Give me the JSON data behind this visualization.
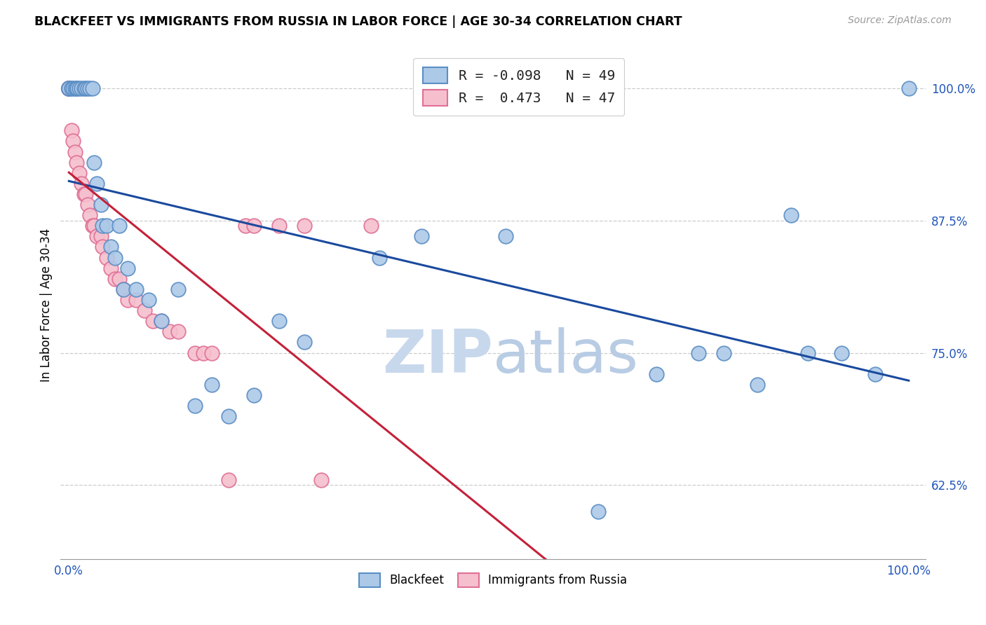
{
  "title": "BLACKFEET VS IMMIGRANTS FROM RUSSIA IN LABOR FORCE | AGE 30-34 CORRELATION CHART",
  "source": "Source: ZipAtlas.com",
  "ylabel": "In Labor Force | Age 30-34",
  "y_tick_labels_right": [
    "100.0%",
    "87.5%",
    "75.0%",
    "62.5%"
  ],
  "y_tick_positions": [
    1.0,
    0.875,
    0.75,
    0.625
  ],
  "blackfeet_color": "#adc9e8",
  "russia_color": "#f5bfce",
  "blackfeet_edge": "#5b8ec4",
  "russia_edge": "#e07095",
  "trendline_blue": "#1a4a9e",
  "trendline_red": "#c4213a",
  "watermark_color": "#c8d8ec",
  "R_blackfeet": -0.098,
  "N_blackfeet": 49,
  "R_russia": 0.473,
  "N_russia": 47,
  "blackfeet_x": [
    0.0,
    0.0,
    0.0,
    0.0,
    0.003,
    0.005,
    0.007,
    0.009,
    0.01,
    0.012,
    0.015,
    0.018,
    0.02,
    0.022,
    0.025,
    0.028,
    0.03,
    0.033,
    0.038,
    0.04,
    0.045,
    0.05,
    0.055,
    0.06,
    0.065,
    0.07,
    0.08,
    0.095,
    0.11,
    0.13,
    0.15,
    0.17,
    0.19,
    0.22,
    0.25,
    0.28,
    0.37,
    0.42,
    0.52,
    0.63,
    0.7,
    0.75,
    0.78,
    0.82,
    0.86,
    0.88,
    0.92,
    0.96,
    1.0
  ],
  "blackfeet_y": [
    1.0,
    1.0,
    1.0,
    1.0,
    1.0,
    1.0,
    1.0,
    1.0,
    1.0,
    1.0,
    1.0,
    1.0,
    1.0,
    1.0,
    1.0,
    1.0,
    0.93,
    0.91,
    0.89,
    0.87,
    0.87,
    0.85,
    0.84,
    0.87,
    0.81,
    0.83,
    0.81,
    0.8,
    0.78,
    0.81,
    0.7,
    0.72,
    0.69,
    0.71,
    0.78,
    0.76,
    0.84,
    0.86,
    0.86,
    0.6,
    0.73,
    0.75,
    0.75,
    0.72,
    0.88,
    0.75,
    0.75,
    0.73,
    1.0
  ],
  "russia_x": [
    0.0,
    0.0,
    0.0,
    0.0,
    0.0,
    0.0,
    0.0,
    0.0,
    0.0,
    0.0,
    0.003,
    0.005,
    0.007,
    0.009,
    0.012,
    0.015,
    0.018,
    0.02,
    0.022,
    0.025,
    0.028,
    0.03,
    0.033,
    0.038,
    0.04,
    0.045,
    0.05,
    0.055,
    0.06,
    0.065,
    0.07,
    0.08,
    0.09,
    0.1,
    0.11,
    0.12,
    0.13,
    0.15,
    0.16,
    0.17,
    0.19,
    0.21,
    0.22,
    0.25,
    0.28,
    0.3,
    0.36
  ],
  "russia_y": [
    1.0,
    1.0,
    1.0,
    1.0,
    1.0,
    1.0,
    1.0,
    1.0,
    1.0,
    1.0,
    0.96,
    0.95,
    0.94,
    0.93,
    0.92,
    0.91,
    0.9,
    0.9,
    0.89,
    0.88,
    0.87,
    0.87,
    0.86,
    0.86,
    0.85,
    0.84,
    0.83,
    0.82,
    0.82,
    0.81,
    0.8,
    0.8,
    0.79,
    0.78,
    0.78,
    0.77,
    0.77,
    0.75,
    0.75,
    0.75,
    0.63,
    0.87,
    0.87,
    0.87,
    0.87,
    0.63,
    0.87
  ]
}
